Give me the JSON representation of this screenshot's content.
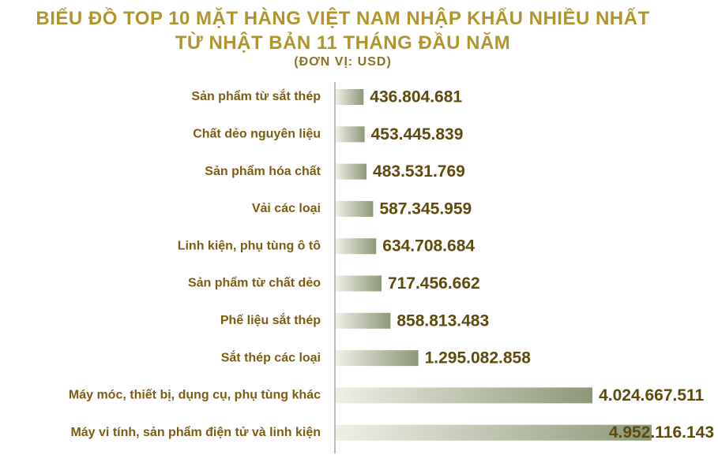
{
  "chart_data": {
    "type": "bar",
    "orientation": "horizontal",
    "title": "BIỂU ĐỒ TOP 10 MẶT HÀNG VIỆT NAM NHẬP KHẨU NHIỀU NHẤT TỪ NHẬT BẢN 11 THÁNG ĐẦU NĂM",
    "subtitle": "(ĐƠN VỊ: USD)",
    "categories": [
      "Sản phẩm từ sắt thép",
      "Chất dẻo nguyên liệu",
      "Sản phẩm hóa chất",
      "Vải các loại",
      "Linh kiện, phụ tùng ô tô",
      "Sản phẩm từ chất dẻo",
      "Phế liệu sắt thép",
      "Sắt thép các loại",
      "Máy móc, thiết bị, dụng cụ, phụ tùng khác",
      "Máy vi tính, sản phẩm điện tử và linh kiện"
    ],
    "values": [
      436804681,
      453445839,
      483531769,
      587345959,
      634708684,
      717456662,
      858813483,
      1295082858,
      4024667511,
      4952116143
    ],
    "value_labels": [
      "436.804.681",
      "453.445.839",
      "483.531.769",
      "587.345.959",
      "634.708.684",
      "717.456.662",
      "858.813.483",
      "1.295.082.858",
      "4.024.667.511",
      "4.952.116.143"
    ],
    "color": "#8d9877"
  }
}
